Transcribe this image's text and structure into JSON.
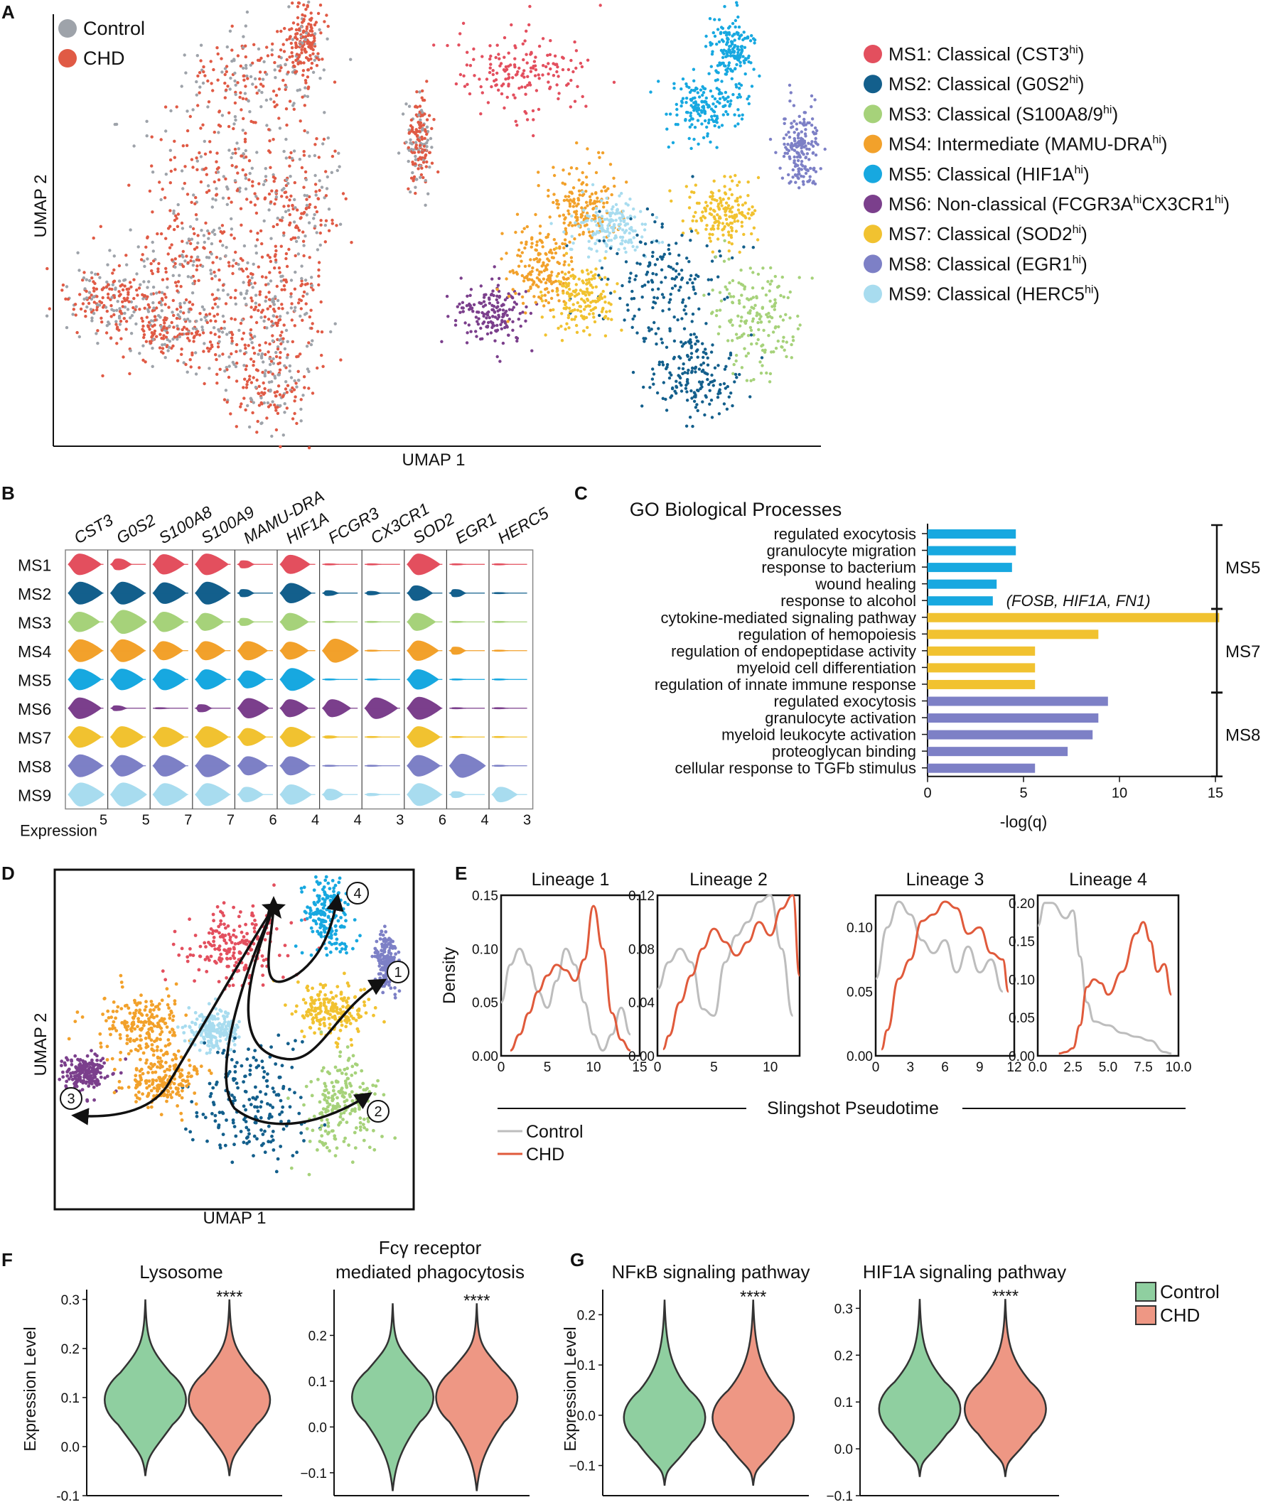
{
  "panel_letters": [
    "A",
    "B",
    "C",
    "D",
    "E",
    "F",
    "G"
  ],
  "colors": {
    "control": "#9ea3aa",
    "chd": "#e05a45",
    "MS1": "#e34f5e",
    "MS2": "#135f8c",
    "MS3": "#a6d27a",
    "MS4": "#f2a12b",
    "MS5": "#17a8e0",
    "MS6": "#7b3f8c",
    "MS7": "#f1c230",
    "MS8": "#7d80c6",
    "MS9": "#a8dcef",
    "violin_control": "#8fcfa0",
    "violin_chd": "#ee9784",
    "line_control": "#bdbdbd",
    "line_chd": "#e05a3b"
  },
  "panelA": {
    "legend_left": [
      {
        "name": "Control"
      },
      {
        "name": "CHD"
      }
    ],
    "legend_right": [
      {
        "id": "MS1",
        "pre": "MS1: Classical (CST3",
        "sup": "hi",
        "post": ")"
      },
      {
        "id": "MS2",
        "pre": "MS2: Classical (G0S2",
        "sup": "hi",
        "post": ")"
      },
      {
        "id": "MS3",
        "pre": "MS3: Classical (S100A8/9",
        "sup": "hi",
        "post": ")"
      },
      {
        "id": "MS4",
        "pre": "MS4: Intermediate (MAMU-DRA",
        "sup": "hi",
        "post": ")"
      },
      {
        "id": "MS5",
        "pre": "MS5: Classical (HIF1A",
        "sup": "hi",
        "post": ")"
      },
      {
        "id": "MS6",
        "pre": "MS6: Non-classical (FCGR3A",
        "sup": "hi",
        "mid": "CX3CR1",
        "sup2": "hi",
        "post": ")"
      },
      {
        "id": "MS7",
        "pre": "MS7: Classical (SOD2",
        "sup": "hi",
        "post": ")"
      },
      {
        "id": "MS8",
        "pre": "MS8: Classical (EGR1",
        "sup": "hi",
        "post": ")"
      },
      {
        "id": "MS9",
        "pre": "MS9: Classical (HERC5",
        "sup": "hi",
        "post": ")"
      }
    ],
    "xlabel": "UMAP 1",
    "ylabel": "UMAP 2"
  },
  "panelB": {
    "genes": [
      "CST3",
      "G0S2",
      "S100A8",
      "S100A9",
      "MAMU-DRA",
      "HIF1A",
      "FCGR3",
      "CX3CR1",
      "SOD2",
      "EGR1",
      "HERC5"
    ],
    "clusters": [
      "MS1",
      "MS2",
      "MS3",
      "MS4",
      "MS5",
      "MS6",
      "MS7",
      "MS8",
      "MS9"
    ],
    "max_expression": [
      "5",
      "5",
      "7",
      "7",
      "6",
      "4",
      "4",
      "3",
      "6",
      "4",
      "3"
    ],
    "xlabel": "Expression",
    "violin_width": [
      [
        0.85,
        0.45,
        0.8,
        0.85,
        0.3,
        0.75,
        0.05,
        0.05,
        0.85,
        0.05,
        0.05
      ],
      [
        0.9,
        0.9,
        0.85,
        0.9,
        0.3,
        0.8,
        0.2,
        0.15,
        0.6,
        0.3,
        0.05
      ],
      [
        0.8,
        0.95,
        0.8,
        0.7,
        0.3,
        0.7,
        0.05,
        0.05,
        0.7,
        0.05,
        0.05
      ],
      [
        0.9,
        0.9,
        0.75,
        0.75,
        0.75,
        0.7,
        0.95,
        0.05,
        0.8,
        0.3,
        0.05
      ],
      [
        0.85,
        0.85,
        0.85,
        0.8,
        0.7,
        0.9,
        0.05,
        0.05,
        0.8,
        0.05,
        0.05
      ],
      [
        0.85,
        0.2,
        0.05,
        0.3,
        0.8,
        0.7,
        0.7,
        0.85,
        0.9,
        0.05,
        0.05
      ],
      [
        0.85,
        0.85,
        0.8,
        0.85,
        0.7,
        0.8,
        0.1,
        0.05,
        0.85,
        0.05,
        0.05
      ],
      [
        0.9,
        0.85,
        0.85,
        0.9,
        0.75,
        0.75,
        0.05,
        0.05,
        0.85,
        0.95,
        0.05
      ],
      [
        0.95,
        0.95,
        0.9,
        0.9,
        0.6,
        0.8,
        0.45,
        0.1,
        0.9,
        0.25,
        0.6
      ]
    ]
  },
  "chart_data": [
    {
      "type": "bar",
      "orientation": "horizontal",
      "title": "GO Biological Processes",
      "xlabel": "-log(q)",
      "xlim": [
        0,
        15
      ],
      "xticks": [
        "0",
        "5",
        "10",
        "15"
      ],
      "annotation": "(FOSB, HIF1A, FN1)",
      "groups": [
        "MS5",
        "MS7",
        "MS8"
      ],
      "categories": [
        "regulated exocytosis",
        "granulocyte migration",
        "response to bacterium",
        "wound healing",
        "response to alcohol",
        "cytokine-mediated signaling pathway",
        "regulation of hemopoiesis",
        "regulation of endopeptidase activity",
        "myeloid cell differentiation",
        "regulation of innate immune response",
        "regulated exocytosis",
        "granulocyte activation",
        "myeloid leukocyte activation",
        "proteoglycan binding",
        "cellular response to TGFb stimulus"
      ],
      "group_of": [
        "MS5",
        "MS5",
        "MS5",
        "MS5",
        "MS5",
        "MS7",
        "MS7",
        "MS7",
        "MS7",
        "MS7",
        "MS8",
        "MS8",
        "MS8",
        "MS8",
        "MS8"
      ],
      "values": [
        4.6,
        4.6,
        4.4,
        3.6,
        3.4,
        15.2,
        8.9,
        5.6,
        5.6,
        5.6,
        9.4,
        8.9,
        8.6,
        7.3,
        5.6
      ]
    },
    {
      "type": "line",
      "shared_xlabel": "Slingshot Pseudotime",
      "ylabel": "Density",
      "legend": [
        "Control",
        "CHD"
      ],
      "panels": [
        {
          "title": "Lineage 1",
          "xlim": [
            0,
            15
          ],
          "ylim": [
            0,
            0.15
          ],
          "xticks": [
            "0",
            "5",
            "10",
            "15"
          ],
          "yticks": [
            "0.00",
            "0.05",
            "0.10",
            "0.15"
          ],
          "x_control": [
            0,
            1,
            2,
            3,
            4,
            5,
            6,
            7,
            8,
            9,
            10,
            11,
            12,
            13,
            14
          ],
          "y_control": [
            0.05,
            0.085,
            0.1,
            0.085,
            0.06,
            0.045,
            0.07,
            0.1,
            0.085,
            0.05,
            0.02,
            0.005,
            0.02,
            0.045,
            0.02
          ],
          "x_chd": [
            1,
            2,
            3,
            4,
            5,
            6,
            7,
            8,
            9,
            10,
            11,
            12,
            13,
            14
          ],
          "y_chd": [
            0.005,
            0.02,
            0.04,
            0.06,
            0.075,
            0.085,
            0.08,
            0.07,
            0.09,
            0.14,
            0.1,
            0.04,
            0.015,
            0.005
          ]
        },
        {
          "title": "Lineage 2",
          "xlim": [
            0,
            12.6
          ],
          "ylim": [
            0,
            0.12
          ],
          "xticks": [
            "0",
            "5",
            "10"
          ],
          "yticks": [
            "0.00",
            "0.04",
            "0.08",
            "0.12"
          ],
          "x_control": [
            0,
            1,
            2,
            3,
            4,
            5,
            6,
            7,
            8,
            9,
            10,
            11,
            12
          ],
          "y_control": [
            0.05,
            0.07,
            0.08,
            0.07,
            0.035,
            0.03,
            0.07,
            0.09,
            0.1,
            0.115,
            0.12,
            0.08,
            0.03
          ],
          "x_chd": [
            0.5,
            1,
            2,
            3,
            4,
            5,
            6,
            7,
            8,
            9,
            10,
            11,
            12,
            12.6
          ],
          "y_chd": [
            0.005,
            0.015,
            0.04,
            0.06,
            0.08,
            0.095,
            0.085,
            0.075,
            0.085,
            0.1,
            0.09,
            0.11,
            0.12,
            0.06
          ]
        },
        {
          "title": "Lineage 3",
          "xlim": [
            0,
            12
          ],
          "ylim": [
            0,
            0.125
          ],
          "xticks": [
            "0",
            "3",
            "6",
            "9",
            "12"
          ],
          "yticks": [
            "0.00",
            "0.05",
            "0.10"
          ],
          "x_control": [
            0,
            1,
            2,
            3,
            4,
            5,
            6,
            7,
            8,
            9,
            10,
            11
          ],
          "y_control": [
            0.06,
            0.1,
            0.12,
            0.11,
            0.09,
            0.08,
            0.09,
            0.065,
            0.085,
            0.065,
            0.075,
            0.05
          ],
          "x_chd": [
            0.5,
            1,
            2,
            3,
            4,
            5,
            6,
            7,
            8,
            9,
            10,
            11,
            11.5
          ],
          "y_chd": [
            0.005,
            0.02,
            0.06,
            0.075,
            0.105,
            0.11,
            0.12,
            0.115,
            0.095,
            0.1,
            0.08,
            0.075,
            0.05
          ]
        },
        {
          "title": "Lineage 4",
          "xlim": [
            0,
            10
          ],
          "ylim": [
            0,
            0.21
          ],
          "xticks": [
            "0.0",
            "2.5",
            "5.0",
            "7.5",
            "10.0"
          ],
          "yticks": [
            "0.00",
            "0.05",
            "0.10",
            "0.15",
            "0.20"
          ],
          "x_control": [
            0,
            0.5,
            1,
            2,
            2.5,
            3,
            3.5,
            4,
            5,
            6,
            7,
            8,
            9,
            9.5
          ],
          "y_control": [
            0.17,
            0.2,
            0.2,
            0.18,
            0.19,
            0.13,
            0.07,
            0.045,
            0.04,
            0.03,
            0.025,
            0.02,
            0.005,
            0.003
          ],
          "x_chd": [
            1.5,
            2,
            2.5,
            3,
            3.5,
            4,
            4.5,
            5,
            6,
            7,
            7.5,
            8,
            8.5,
            9,
            9.5
          ],
          "y_chd": [
            0.003,
            0.005,
            0.01,
            0.04,
            0.09,
            0.1,
            0.095,
            0.08,
            0.11,
            0.16,
            0.175,
            0.15,
            0.11,
            0.12,
            0.08
          ]
        }
      ]
    },
    {
      "type": "violin",
      "ylabel": "Expression Level",
      "legend": [
        "Control",
        "CHD"
      ],
      "panels": [
        {
          "title_lines": [
            "Lysosome"
          ],
          "ylim": [
            -0.1,
            0.32
          ],
          "yticks": [
            "-0.1",
            "0.0",
            "0.1",
            "0.2",
            "0.3"
          ],
          "signif": "****",
          "median": 0.1,
          "top": 0.3,
          "bottom": -0.06
        },
        {
          "title_lines": [
            "Fcγ receptor",
            "mediated phagocytosis"
          ],
          "ylim": [
            -0.15,
            0.3
          ],
          "yticks": [
            "−0.1",
            "0.0",
            "0.1",
            "0.2"
          ],
          "signif": "****",
          "median": 0.07,
          "top": 0.27,
          "bottom": -0.14
        },
        {
          "title_lines": [
            "NFκB signaling pathway"
          ],
          "ylim": [
            -0.16,
            0.25
          ],
          "yticks": [
            "−0.1",
            "0.0",
            "0.1",
            "0.2"
          ],
          "signif": "****",
          "median": 0.0,
          "top": 0.23,
          "bottom": -0.14
        },
        {
          "title_lines": [
            "HIF1A signaling pathway"
          ],
          "ylim": [
            -0.1,
            0.34
          ],
          "yticks": [
            "−0.1",
            "0.0",
            "0.1",
            "0.2",
            "0.3"
          ],
          "signif": "****",
          "median": 0.09,
          "top": 0.32,
          "bottom": -0.06
        }
      ]
    }
  ],
  "panelD": {
    "xlabel": "UMAP 1",
    "ylabel": "UMAP 2",
    "lineage_markers": [
      "1",
      "2",
      "3",
      "4"
    ]
  }
}
